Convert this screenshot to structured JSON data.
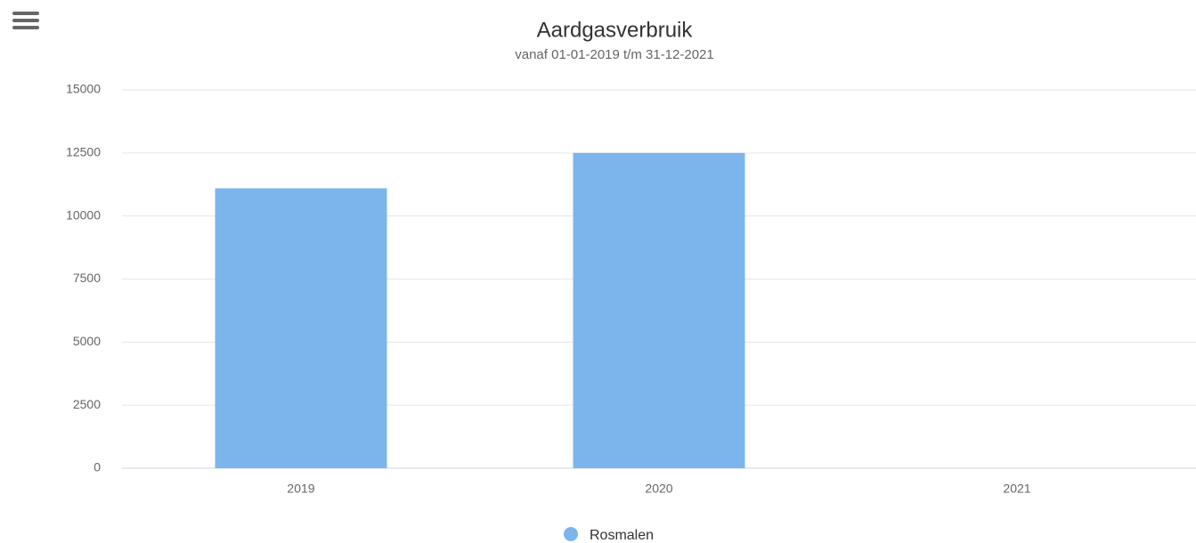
{
  "chart_data": {
    "type": "bar",
    "title": "Aardgasverbruik",
    "subtitle": "vanaf 01-01-2019 t/m 31-12-2021",
    "categories": [
      "2019",
      "2020",
      "2021"
    ],
    "series": [
      {
        "name": "Rosmalen",
        "color": "#7cb5ec",
        "values": [
          11100,
          12500,
          0
        ]
      }
    ],
    "ylim": [
      0,
      15000
    ],
    "yticks": [
      0,
      2500,
      5000,
      7500,
      10000,
      12500,
      15000
    ],
    "grid": true
  }
}
